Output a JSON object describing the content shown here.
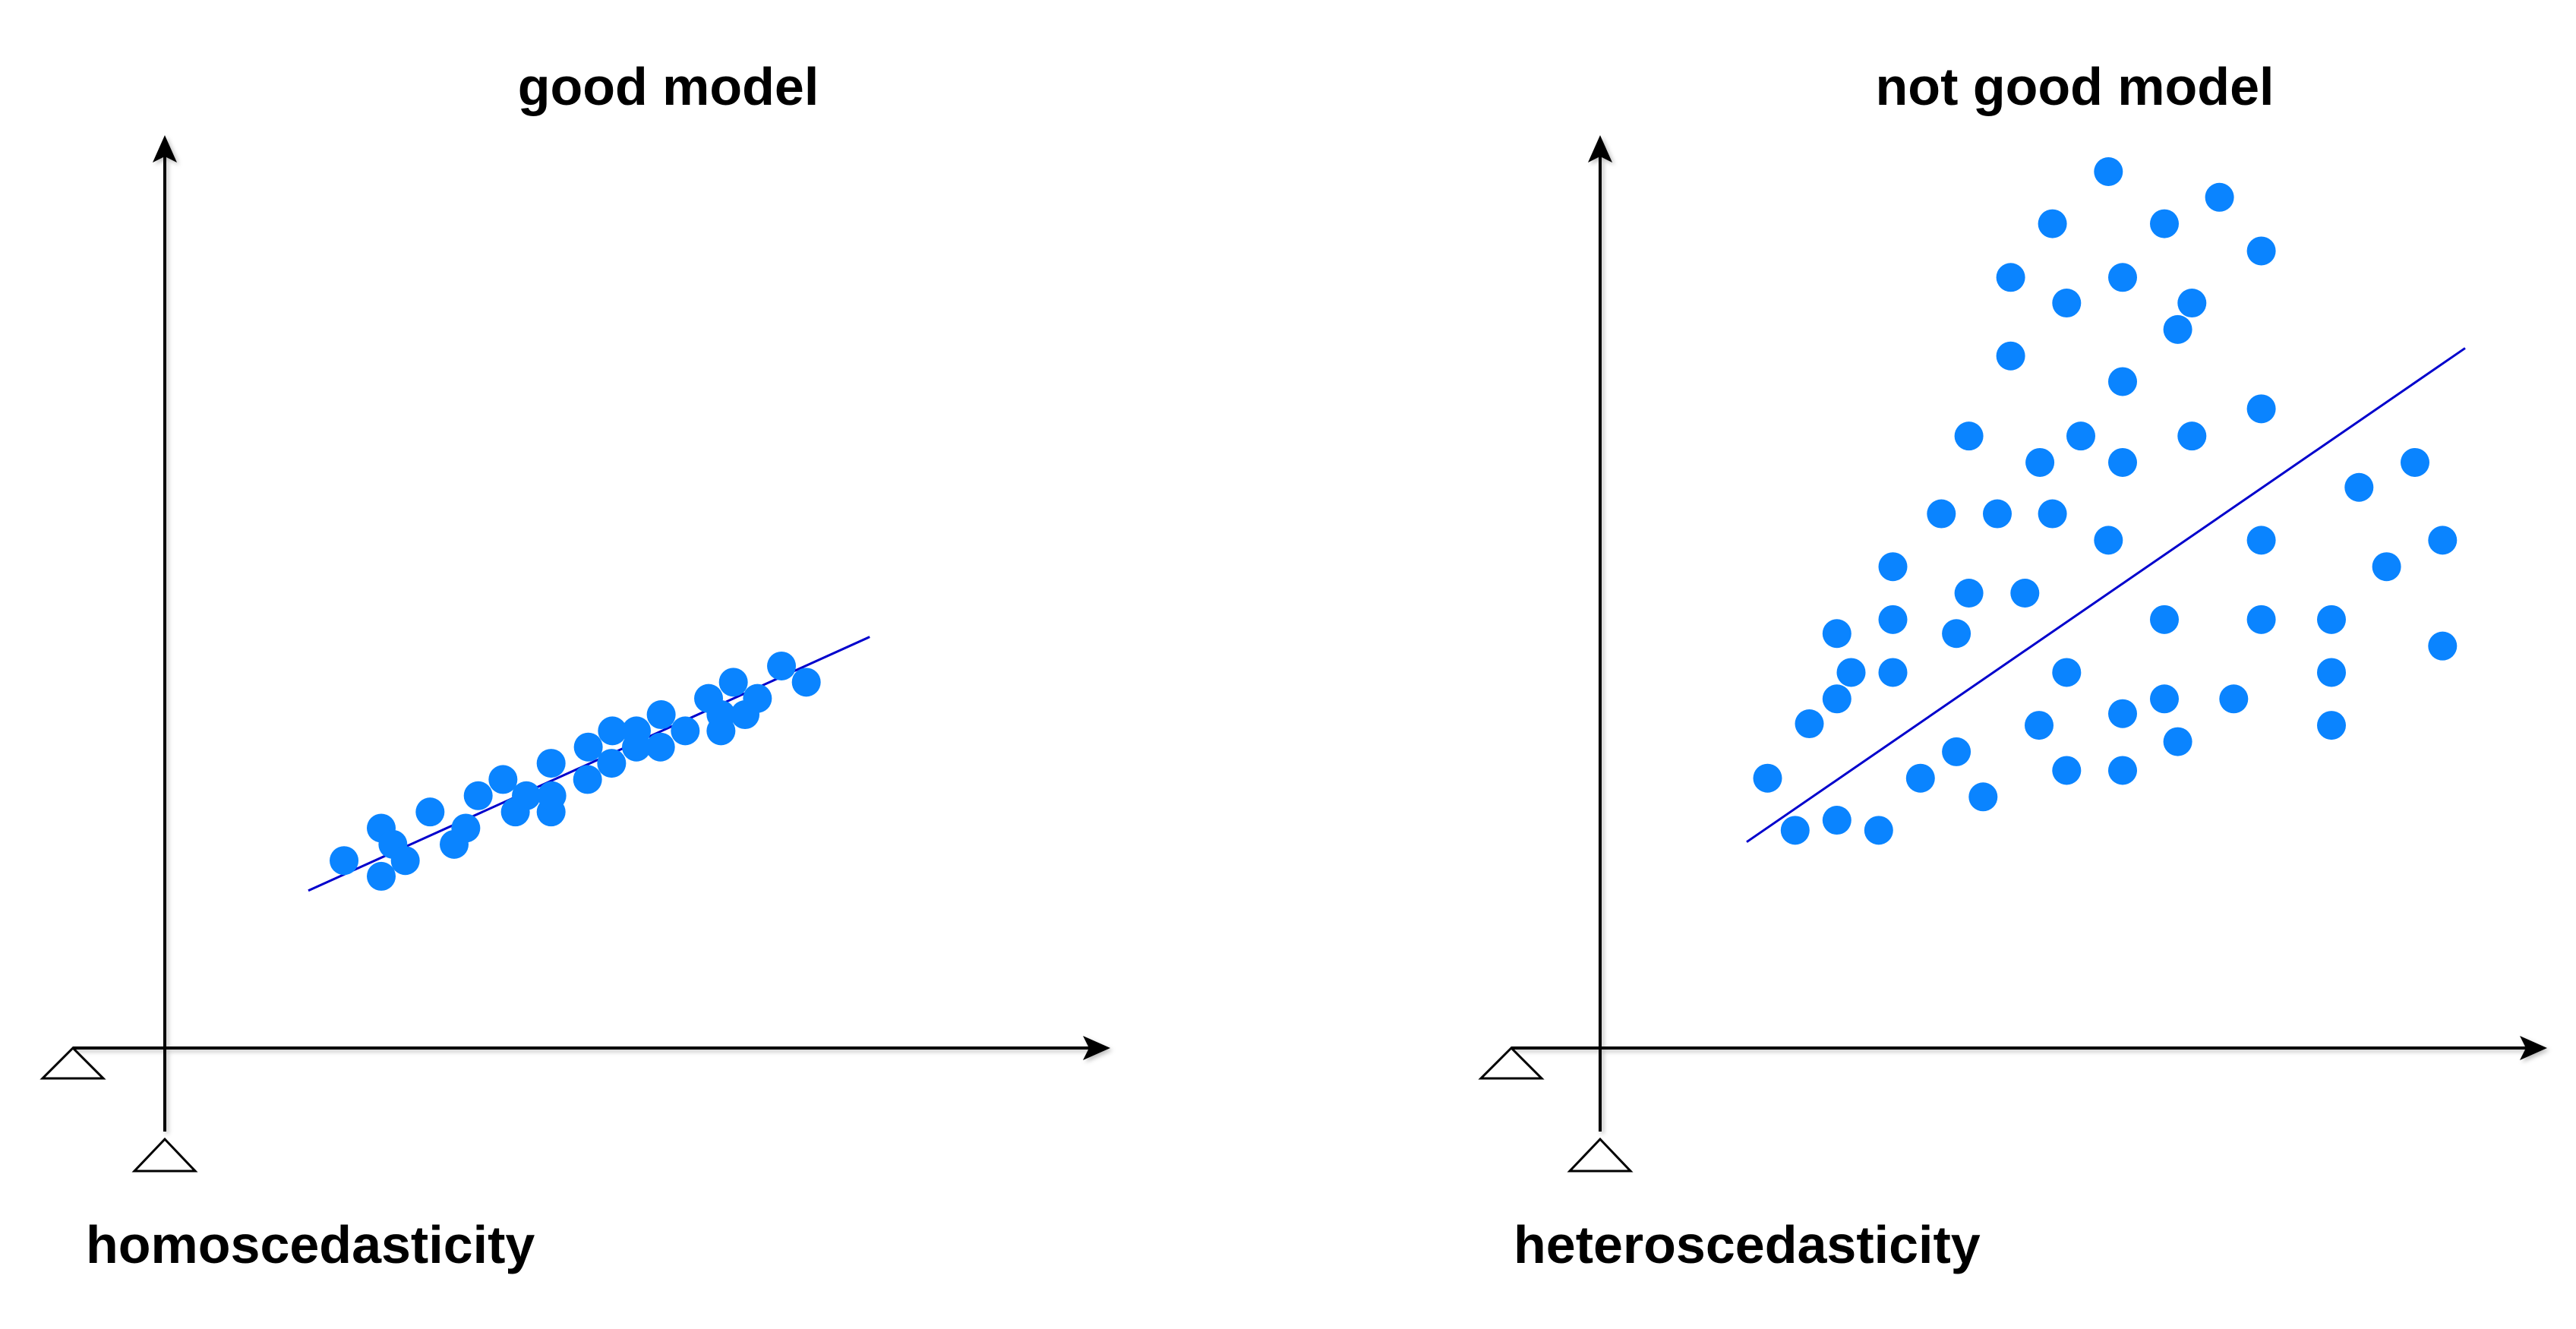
{
  "chart_data": [
    {
      "type": "scatter",
      "title": "good model",
      "caption": "homoscedasticity",
      "line_color": "#0000cc",
      "point_color": "#0a84ff",
      "xlim": [
        0,
        100
      ],
      "ylim": [
        0,
        100
      ],
      "fit_line": [
        [
          10,
          12.3
        ],
        [
          87,
          65.5
        ]
      ],
      "points": [
        [
          14.9,
          18.6
        ],
        [
          20,
          15.3
        ],
        [
          20,
          25.4
        ],
        [
          21.6,
          22
        ],
        [
          23.3,
          18.6
        ],
        [
          26.7,
          28.8
        ],
        [
          30,
          22
        ],
        [
          31.6,
          25.4
        ],
        [
          33.3,
          32.2
        ],
        [
          36.7,
          35.6
        ],
        [
          38.4,
          28.8
        ],
        [
          39.9,
          32.2
        ],
        [
          43.3,
          28.8
        ],
        [
          43.3,
          39
        ],
        [
          43.4,
          32.2
        ],
        [
          48.3,
          35.6
        ],
        [
          48.4,
          42.4
        ],
        [
          51.6,
          39
        ],
        [
          51.7,
          45.8
        ],
        [
          55,
          45.8
        ],
        [
          55,
          42.4
        ],
        [
          58.3,
          42.4
        ],
        [
          58.4,
          49.2
        ],
        [
          61.7,
          45.8
        ],
        [
          64.9,
          52.6
        ],
        [
          66.6,
          49.2
        ],
        [
          66.6,
          45.8
        ],
        [
          68.3,
          56
        ],
        [
          69.9,
          49.2
        ],
        [
          71.6,
          52.6
        ],
        [
          74.9,
          59.4
        ],
        [
          78.3,
          56
        ]
      ]
    },
    {
      "type": "scatter",
      "title": "not good model",
      "caption": "heteroscedasticity",
      "line_color": "#0000cc",
      "point_color": "#0a84ff",
      "xlim": [
        0,
        100
      ],
      "ylim": [
        0,
        100
      ],
      "fit_line": [
        [
          10,
          13.8
        ],
        [
          96,
          77.3
        ]
      ],
      "points": [
        [
          12.5,
          22
        ],
        [
          15.8,
          15.3
        ],
        [
          17.5,
          29
        ],
        [
          20.8,
          32.2
        ],
        [
          20.8,
          16.6
        ],
        [
          20.8,
          40.6
        ],
        [
          22.5,
          35.6
        ],
        [
          25.8,
          15.3
        ],
        [
          27.5,
          35.6
        ],
        [
          27.5,
          49.2
        ],
        [
          27.5,
          42.4
        ],
        [
          30.8,
          22
        ],
        [
          33.3,
          56
        ],
        [
          35.1,
          25.4
        ],
        [
          35.1,
          40.6
        ],
        [
          36.6,
          45.8
        ],
        [
          36.6,
          66
        ],
        [
          38.3,
          19.6
        ],
        [
          40,
          56
        ],
        [
          41.6,
          76.3
        ],
        [
          41.6,
          86.4
        ],
        [
          43.3,
          45.8
        ],
        [
          45,
          28.8
        ],
        [
          45.1,
          62.6
        ],
        [
          46.6,
          56
        ],
        [
          46.6,
          93.3
        ],
        [
          48.3,
          23
        ],
        [
          48.3,
          83.1
        ],
        [
          48.3,
          35.6
        ],
        [
          50,
          66
        ],
        [
          53.3,
          52.6
        ],
        [
          53.3,
          100
        ],
        [
          55,
          23
        ],
        [
          55,
          30.3
        ],
        [
          55,
          62.6
        ],
        [
          55,
          73
        ],
        [
          55,
          86.4
        ],
        [
          60,
          42.4
        ],
        [
          60,
          32.2
        ],
        [
          60,
          93.3
        ],
        [
          61.6,
          26.7
        ],
        [
          61.6,
          79.7
        ],
        [
          63.3,
          66
        ],
        [
          63.3,
          83.1
        ],
        [
          66.6,
          96.7
        ],
        [
          68.3,
          32.2
        ],
        [
          71.6,
          89.8
        ],
        [
          71.6,
          52.6
        ],
        [
          71.6,
          42.4
        ],
        [
          71.6,
          69.5
        ],
        [
          80,
          42.4
        ],
        [
          80,
          35.6
        ],
        [
          80,
          28.8
        ],
        [
          83.3,
          59.4
        ],
        [
          86.6,
          49.2
        ],
        [
          90,
          62.6
        ],
        [
          93.3,
          52.6
        ],
        [
          93.3,
          39
        ]
      ]
    }
  ]
}
